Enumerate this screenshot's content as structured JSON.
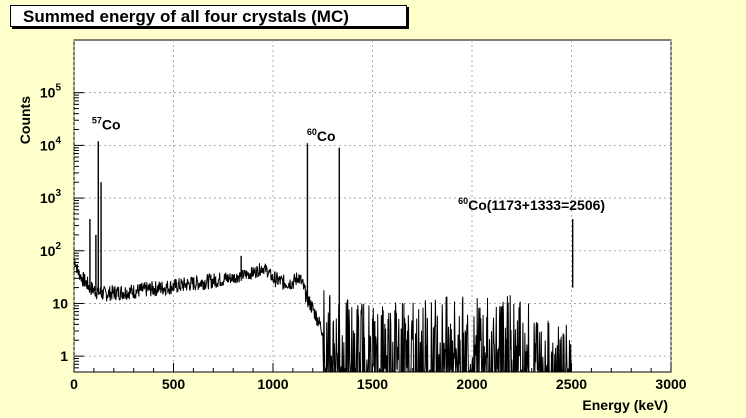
{
  "chart_data": {
    "type": "line",
    "title": "Summed energy of all four crystals (MC)",
    "xlabel": "Energy (keV)",
    "ylabel": "Counts",
    "xlim": [
      0,
      3000
    ],
    "ylim": [
      0.5,
      1000000
    ],
    "yscale": "log",
    "grid": true,
    "x_ticks": [
      0,
      500,
      1000,
      1500,
      2000,
      2500,
      3000
    ],
    "x_tick_labels": [
      "0",
      "500",
      "1000",
      "1500",
      "2000",
      "2500",
      "3000"
    ],
    "y_ticks": [
      1,
      10,
      100,
      1000,
      10000,
      100000
    ],
    "y_tick_labels": [
      {
        "base": "1",
        "exp": ""
      },
      {
        "base": "10",
        "exp": ""
      },
      {
        "base": "10",
        "exp": "2"
      },
      {
        "base": "10",
        "exp": "3"
      },
      {
        "base": "10",
        "exp": "4"
      },
      {
        "base": "10",
        "exp": "5"
      }
    ],
    "annotations": [
      {
        "sup": "57",
        "text": "Co",
        "x": 90,
        "y": 20000
      },
      {
        "sup": "60",
        "text": "Co",
        "x": 1170,
        "y": 12000
      },
      {
        "sup": "60",
        "text": "Co(1173+1333=2506)",
        "x": 1930,
        "y": 600
      }
    ],
    "peaks": [
      {
        "x": 122,
        "y": 12000
      },
      {
        "x": 136,
        "y": 2000
      },
      {
        "x": 80,
        "y": 400
      },
      {
        "x": 110,
        "y": 200
      },
      {
        "x": 1173,
        "y": 11000
      },
      {
        "x": 1333,
        "y": 9000
      },
      {
        "x": 2506,
        "y": 400
      },
      {
        "x": 840,
        "y": 80
      }
    ],
    "spectrum": [
      [
        2,
        70
      ],
      [
        20,
        40
      ],
      [
        40,
        30
      ],
      [
        60,
        25
      ],
      [
        80,
        20
      ],
      [
        100,
        18
      ],
      [
        130,
        16
      ],
      [
        150,
        15
      ],
      [
        200,
        16
      ],
      [
        300,
        17
      ],
      [
        400,
        19
      ],
      [
        500,
        21
      ],
      [
        600,
        24
      ],
      [
        700,
        27
      ],
      [
        800,
        31
      ],
      [
        900,
        38
      ],
      [
        950,
        48
      ],
      [
        970,
        42
      ],
      [
        1000,
        30
      ],
      [
        1050,
        25
      ],
      [
        1100,
        25
      ],
      [
        1130,
        32
      ],
      [
        1150,
        22
      ],
      [
        1173,
        12
      ],
      [
        1200,
        8
      ],
      [
        1250,
        3
      ],
      [
        1300,
        1.8
      ],
      [
        1333,
        1.5
      ],
      [
        1400,
        1.6
      ],
      [
        1500,
        1.7
      ],
      [
        1700,
        1.7
      ],
      [
        1900,
        1.8
      ],
      [
        2100,
        1.8
      ],
      [
        2250,
        1.9
      ],
      [
        2300,
        1.3
      ],
      [
        2350,
        1.0
      ],
      [
        2400,
        0.8
      ],
      [
        2450,
        0.6
      ],
      [
        2500,
        0.5
      ]
    ]
  }
}
